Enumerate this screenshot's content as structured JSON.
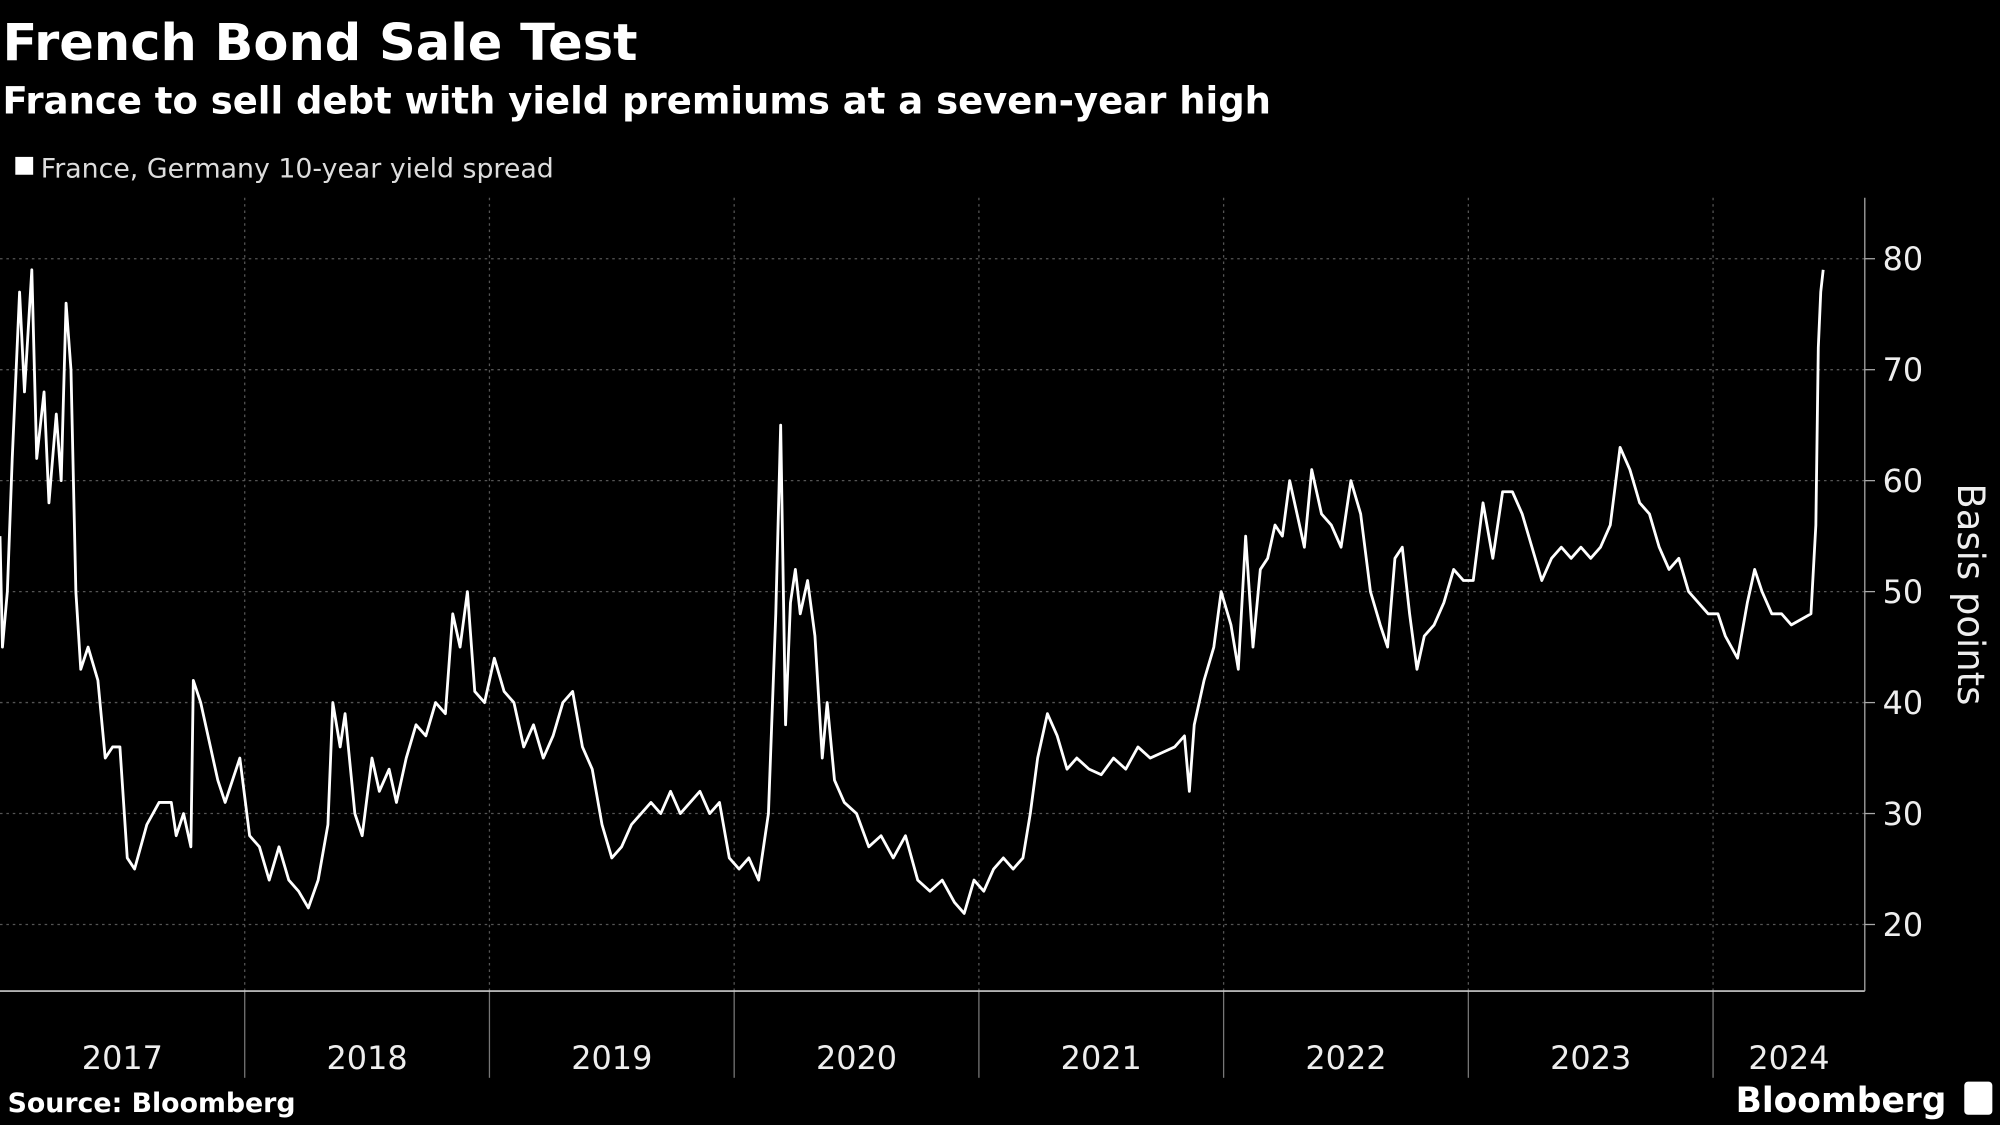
{
  "chart_data": {
    "type": "line",
    "title": "French Bond Sale Test",
    "subtitle": "France to sell debt with yield premiums at a seven-year high",
    "y_label": "Basis points",
    "source": "Source: Bloomberg",
    "brand": "Bloomberg",
    "xlim": [
      2017.0,
      2024.62
    ],
    "xticks": [
      2018,
      2019,
      2020,
      2021,
      2022,
      2023,
      2024
    ],
    "xtick_labels": [
      {
        "value": 2017.5,
        "label": "2017"
      },
      {
        "value": 2018.5,
        "label": "2018"
      },
      {
        "value": 2019.5,
        "label": "2019"
      },
      {
        "value": 2020.5,
        "label": "2020"
      },
      {
        "value": 2021.5,
        "label": "2021"
      },
      {
        "value": 2022.5,
        "label": "2022"
      },
      {
        "value": 2023.5,
        "label": "2023"
      },
      {
        "value": 2024.31,
        "label": "2024"
      }
    ],
    "ylim": [
      14,
      85.5
    ],
    "yticks": [
      20,
      30,
      40,
      50,
      60,
      70,
      80
    ],
    "grid": true,
    "series": [
      {
        "name": "France, Germany 10-year yield spread",
        "color": "#ffffff",
        "x": [
          2017.0,
          2017.01,
          2017.03,
          2017.05,
          2017.08,
          2017.1,
          2017.13,
          2017.15,
          2017.18,
          2017.2,
          2017.23,
          2017.25,
          2017.27,
          2017.29,
          2017.31,
          2017.33,
          2017.36,
          2017.4,
          2017.43,
          2017.46,
          2017.49,
          2017.52,
          2017.55,
          2017.6,
          2017.65,
          2017.7,
          2017.72,
          2017.75,
          2017.78,
          2017.79,
          2017.82,
          2017.86,
          2017.89,
          2017.92,
          2017.95,
          2017.98,
          2018.02,
          2018.06,
          2018.1,
          2018.14,
          2018.18,
          2018.22,
          2018.26,
          2018.3,
          2018.34,
          2018.36,
          2018.39,
          2018.41,
          2018.45,
          2018.48,
          2018.52,
          2018.55,
          2018.59,
          2018.62,
          2018.66,
          2018.7,
          2018.74,
          2018.78,
          2018.82,
          2018.85,
          2018.88,
          2018.91,
          2018.94,
          2018.98,
          2019.02,
          2019.06,
          2019.1,
          2019.14,
          2019.18,
          2019.22,
          2019.26,
          2019.3,
          2019.34,
          2019.38,
          2019.42,
          2019.46,
          2019.5,
          2019.54,
          2019.58,
          2019.62,
          2019.66,
          2019.7,
          2019.74,
          2019.78,
          2019.82,
          2019.86,
          2019.9,
          2019.94,
          2019.98,
          2020.02,
          2020.06,
          2020.1,
          2020.14,
          2020.17,
          2020.19,
          2020.21,
          2020.23,
          2020.25,
          2020.27,
          2020.3,
          2020.33,
          2020.36,
          2020.38,
          2020.41,
          2020.45,
          2020.5,
          2020.55,
          2020.6,
          2020.65,
          2020.7,
          2020.75,
          2020.8,
          2020.85,
          2020.9,
          2020.94,
          2020.98,
          2021.02,
          2021.06,
          2021.1,
          2021.14,
          2021.18,
          2021.21,
          2021.24,
          2021.28,
          2021.32,
          2021.36,
          2021.4,
          2021.45,
          2021.5,
          2021.55,
          2021.6,
          2021.65,
          2021.7,
          2021.75,
          2021.8,
          2021.84,
          2021.86,
          2021.88,
          2021.92,
          2021.96,
          2021.99,
          2022.03,
          2022.06,
          2022.09,
          2022.12,
          2022.15,
          2022.18,
          2022.21,
          2022.24,
          2022.27,
          2022.3,
          2022.33,
          2022.36,
          2022.4,
          2022.44,
          2022.48,
          2022.52,
          2022.56,
          2022.6,
          2022.64,
          2022.67,
          2022.7,
          2022.73,
          2022.76,
          2022.79,
          2022.82,
          2022.86,
          2022.9,
          2022.94,
          2022.98,
          2023.02,
          2023.06,
          2023.1,
          2023.14,
          2023.18,
          2023.22,
          2023.26,
          2023.3,
          2023.34,
          2023.38,
          2023.42,
          2023.46,
          2023.5,
          2023.54,
          2023.58,
          2023.62,
          2023.66,
          2023.7,
          2023.74,
          2023.78,
          2023.82,
          2023.86,
          2023.9,
          2023.94,
          2023.98,
          2024.02,
          2024.05,
          2024.1,
          2024.14,
          2024.17,
          2024.2,
          2024.24,
          2024.28,
          2024.32,
          2024.36,
          2024.4,
          2024.42,
          2024.43,
          2024.44,
          2024.45
        ],
        "values": [
          55,
          45,
          50,
          62,
          77,
          68,
          79,
          62,
          68,
          58,
          66,
          60,
          76,
          70,
          50,
          43,
          45,
          42,
          35,
          36,
          36,
          26,
          25,
          29,
          31,
          31,
          28,
          30,
          27,
          42,
          40,
          36,
          33,
          31,
          33,
          35,
          28,
          27,
          24,
          27,
          24,
          23,
          21.5,
          24,
          29,
          40,
          36,
          39,
          30,
          28,
          35,
          32,
          34,
          31,
          35,
          38,
          37,
          40,
          39,
          48,
          45,
          50,
          41,
          40,
          44,
          41,
          40,
          36,
          38,
          35,
          37,
          40,
          41,
          36,
          34,
          29,
          26,
          27,
          29,
          30,
          31,
          30,
          32,
          30,
          31,
          32,
          30,
          31,
          26,
          25,
          26,
          24,
          30,
          48,
          65,
          38,
          49,
          52,
          48,
          51,
          46,
          35,
          40,
          33,
          31,
          30,
          27,
          28,
          26,
          28,
          24,
          23,
          24,
          22,
          21,
          24,
          23,
          25,
          26,
          25,
          26,
          30,
          35,
          39,
          37,
          34,
          35,
          34,
          33.5,
          35,
          34,
          36,
          35,
          35.5,
          36,
          37,
          32,
          38,
          42,
          45,
          50,
          47,
          43,
          55,
          45,
          52,
          53,
          56,
          55,
          60,
          57,
          54,
          61,
          57,
          56,
          54,
          60,
          57,
          50,
          47,
          45,
          53,
          54,
          48,
          43,
          46,
          47,
          49,
          52,
          51,
          51,
          58,
          53,
          59,
          59,
          57,
          54,
          51,
          53,
          54,
          53,
          54,
          53,
          54,
          56,
          63,
          61,
          58,
          57,
          54,
          52,
          53,
          50,
          49,
          48,
          48,
          46,
          44,
          49,
          52,
          50,
          48,
          48,
          47,
          47.5,
          48,
          56,
          72,
          77,
          79
        ]
      }
    ]
  }
}
